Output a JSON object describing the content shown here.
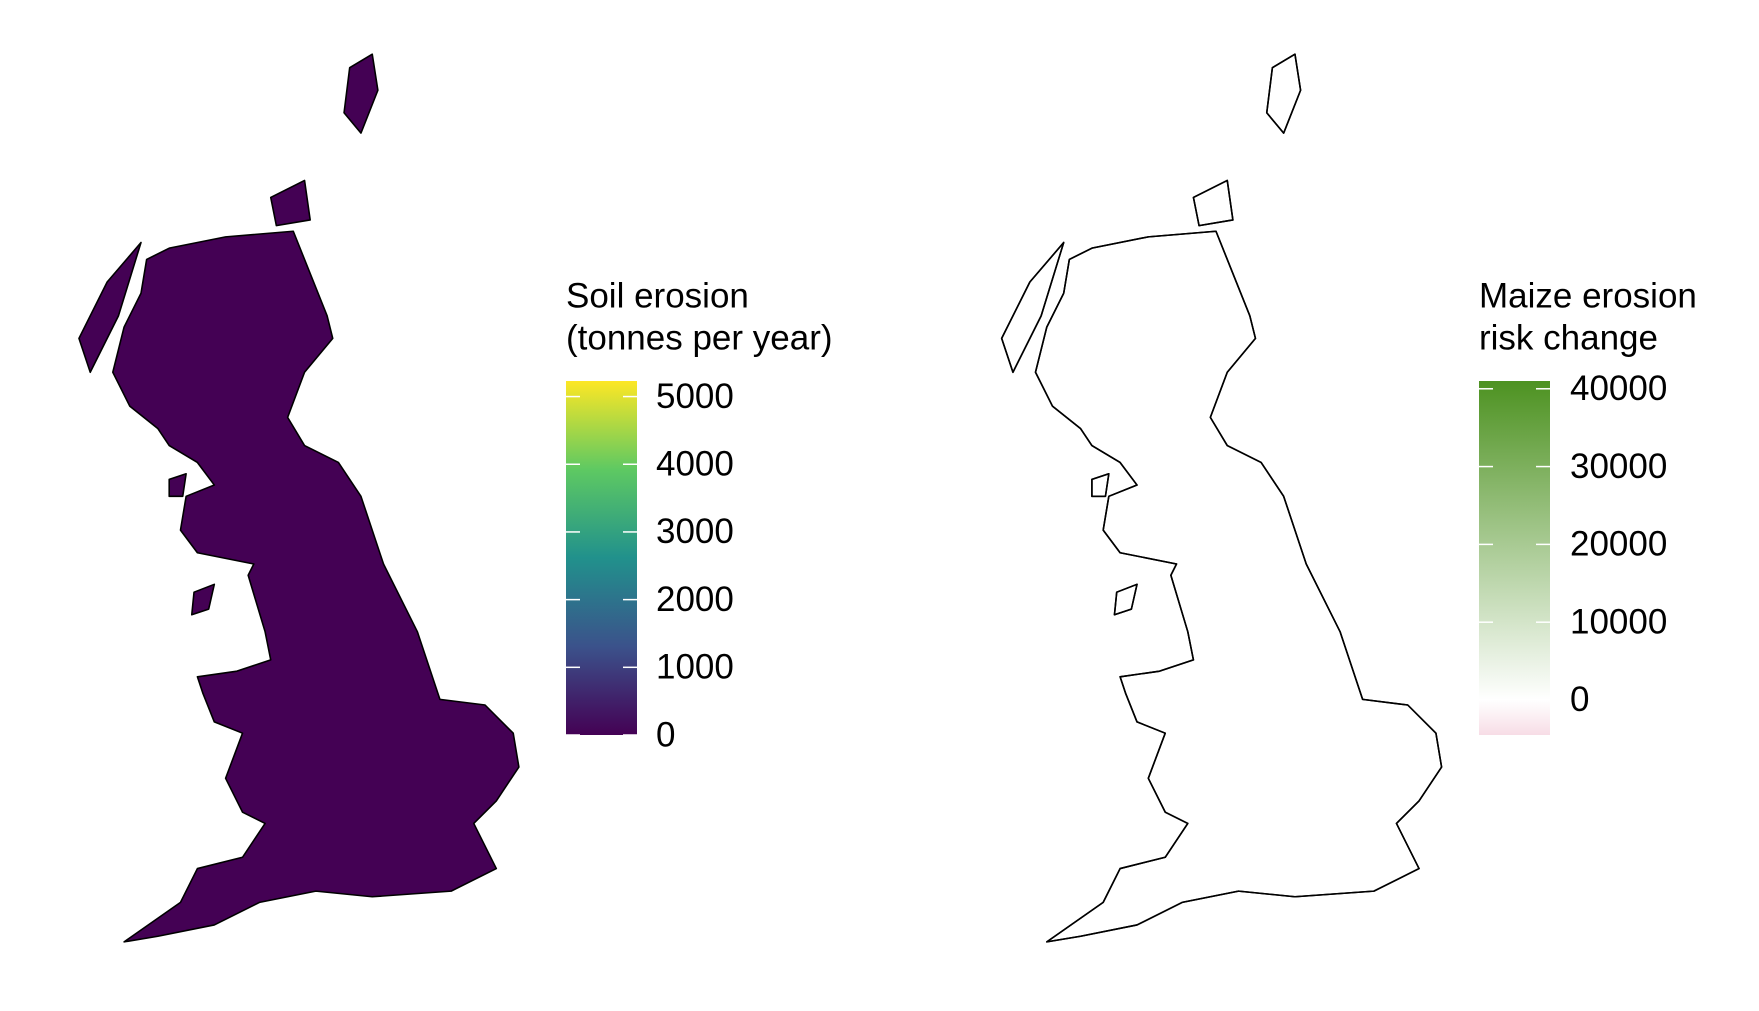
{
  "maps": [
    {
      "legend_title": [
        "Soil erosion",
        "(tonnes per year)"
      ],
      "lim": [
        0,
        5230
      ],
      "ticks": [
        0,
        1000,
        2000,
        3000,
        4000,
        5000
      ],
      "colors": [
        "#440154",
        "#3b528b",
        "#21918c",
        "#5ec962",
        "#fde725"
      ],
      "land_color": "#440154"
    },
    {
      "legend_title": [
        "Maize erosion",
        "risk change"
      ],
      "lim": [
        -4500,
        41000
      ],
      "ticks": [
        0,
        10000,
        20000,
        30000,
        40000
      ],
      "low": "#f7dde6",
      "mid": "#ffffff",
      "high": "#4d9221",
      "midpoint": 0,
      "land_color": "#ffffff",
      "na_color": "#d3d3d3"
    }
  ]
}
